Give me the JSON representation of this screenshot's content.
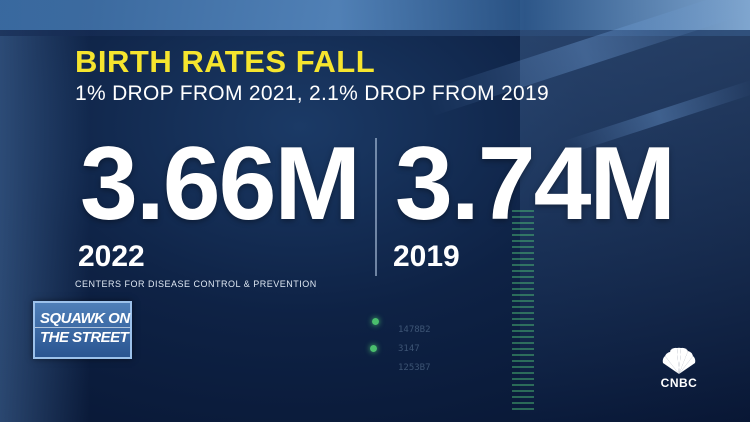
{
  "headline": {
    "title": "BIRTH RATES FALL",
    "subtitle": "1% DROP FROM 2021, 2.1% DROP FROM 2019"
  },
  "stats": [
    {
      "value": "3.66M",
      "year": "2022"
    },
    {
      "value": "3.74M",
      "year": "2019"
    }
  ],
  "source": "CENTERS FOR DISEASE CONTROL & PREVENTION",
  "show_logo": {
    "line1": "SQUAWK ON",
    "line2": "THE STREET"
  },
  "network_logo": {
    "name": "CNBC",
    "icon": "peacock-icon"
  },
  "background_screen": {
    "lines": [
      "1478B2",
      "3147",
      "1253B7"
    ]
  },
  "colors": {
    "title": "#f6e52e",
    "text": "#ffffff",
    "background": "#0e2245"
  }
}
